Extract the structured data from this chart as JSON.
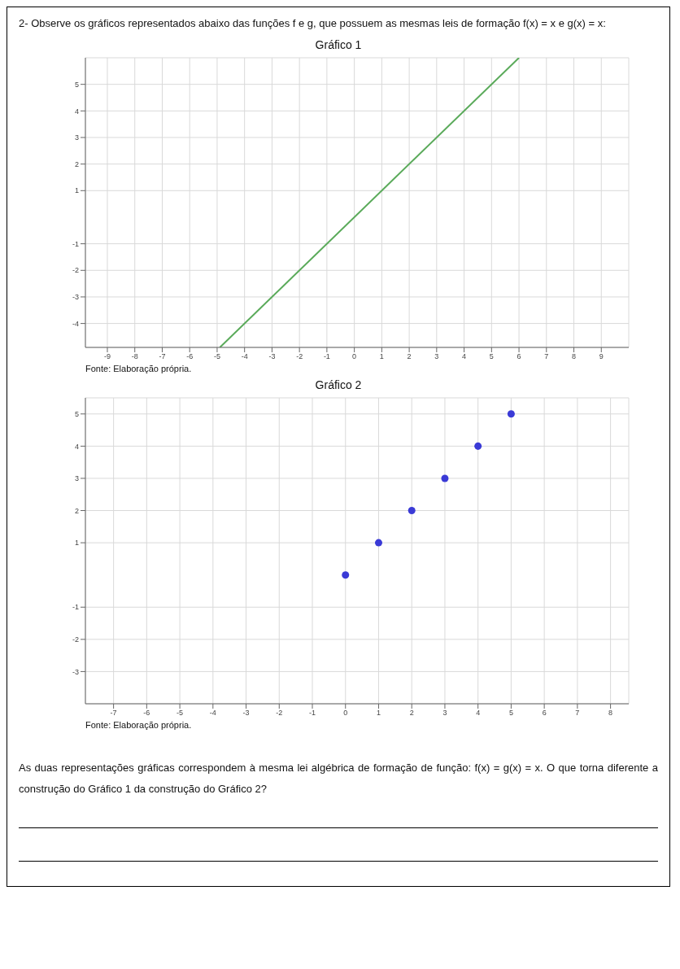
{
  "chart_data": [
    {
      "type": "line",
      "title": "Gráfico 1",
      "annotations": [
        "2- Observe os gráficos representados abaixo das funções f e g, que possuem as mesmas leis de formação f(x) = x e g(x) = x:",
        "Fonte: Elaboração própria."
      ],
      "x": [
        -4.9,
        6
      ],
      "series": [
        {
          "color": "#5aaa5a",
          "values": [
            -4.9,
            6
          ]
        }
      ],
      "xlim": [
        -9.8,
        10
      ],
      "ylim": [
        -4.9,
        6
      ],
      "xticks": [
        -9,
        -8,
        -7,
        -6,
        -5,
        -4,
        -3,
        -2,
        -1,
        0,
        1,
        2,
        3,
        4,
        5,
        6,
        7,
        8,
        9
      ],
      "yticks": [
        -4,
        -3,
        -2,
        -1,
        1,
        2,
        3,
        4,
        5
      ],
      "grid": true,
      "marker": "none"
    },
    {
      "type": "scatter",
      "title": "Gráfico 2",
      "annotations": [
        "Fonte: Elaboração própria.",
        "As duas representações gráficas correspondem à mesma lei algébrica de formação de função: f(x) = g(x) = x. O que torna diferente a construção do Gráfico 1 da construção do Gráfico 2?"
      ],
      "x": [
        0,
        1,
        2,
        3,
        4,
        5
      ],
      "series": [
        {
          "color": "#3a3ad6",
          "values": [
            0,
            1,
            2,
            3,
            4,
            5
          ]
        }
      ],
      "xlim": [
        -7.85,
        8.55
      ],
      "ylim": [
        -4,
        5.5
      ],
      "xticks": [
        -7,
        -6,
        -5,
        -4,
        -3,
        -2,
        -1,
        0,
        1,
        2,
        3,
        4,
        5,
        6,
        7,
        8
      ],
      "yticks": [
        -3,
        -2,
        -1,
        1,
        2,
        3,
        4,
        5
      ],
      "grid": true,
      "marker": "circle"
    }
  ]
}
